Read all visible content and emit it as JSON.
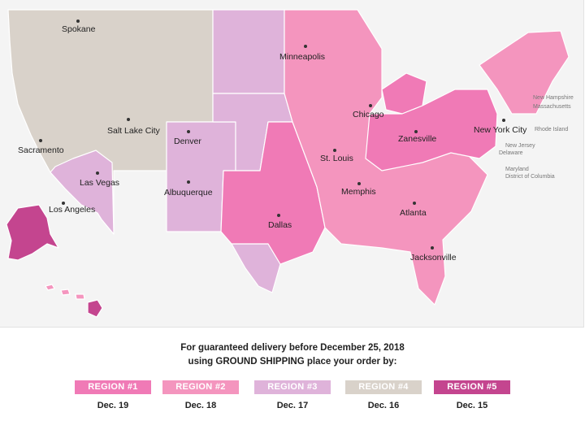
{
  "map": {
    "colors": {
      "region1": "#f07ab6",
      "region2": "#f495be",
      "region3": "#dfb3da",
      "region4": "#d9d2ca",
      "region5": "#c4458f",
      "border": "#ffffff",
      "background": "#f4f4f4"
    },
    "cities": [
      "Spokane",
      "Minneapolis",
      "Salt Lake City",
      "Chicago",
      "Sacramento",
      "Denver",
      "Zanesville",
      "New York City",
      "St. Louis",
      "Las Vegas",
      "Albuquerque",
      "Memphis",
      "Los Angeles",
      "Atlanta",
      "Dallas",
      "Jacksonville"
    ],
    "state_labels": [
      "New Hampshire",
      "Massachusetts",
      "Rhode Island",
      "New Jersey",
      "Delaware",
      "Maryland",
      "District of Columbia"
    ]
  },
  "note": {
    "line1": "For guaranteed delivery before December 25, 2018",
    "line2_prefix": "using ",
    "line2_emphasis": "GROUND SHIPPING",
    "line2_suffix": " place your order by:"
  },
  "legend": [
    {
      "label": "REGION #1",
      "date": "Dec. 19",
      "color": "#f07ab6"
    },
    {
      "label": "REGION #2",
      "date": "Dec. 18",
      "color": "#f495be"
    },
    {
      "label": "REGION #3",
      "date": "Dec. 17",
      "color": "#dfb3da"
    },
    {
      "label": "REGION #4",
      "date": "Dec. 16",
      "color": "#d9d2ca"
    },
    {
      "label": "REGION #5",
      "date": "Dec. 15",
      "color": "#c4458f"
    }
  ]
}
